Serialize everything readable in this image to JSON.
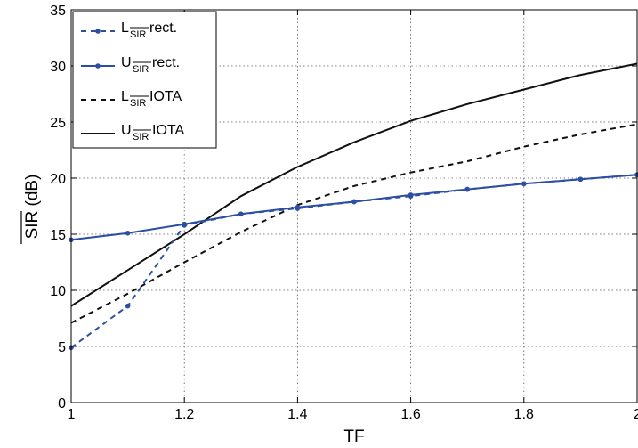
{
  "chart_data": {
    "type": "line",
    "xlabel": "TF",
    "ylabel": "SIR (dB)",
    "xlim": [
      1,
      2
    ],
    "ylim": [
      0,
      35
    ],
    "xticks": [
      1,
      1.2,
      1.4,
      1.6,
      1.8,
      2
    ],
    "xtick_labels": [
      "1",
      "1.2",
      "1.4",
      "1.6",
      "1.8",
      "2"
    ],
    "yticks": [
      0,
      5,
      10,
      15,
      20,
      25,
      30,
      35
    ],
    "ytick_labels": [
      "0",
      "5",
      "10",
      "15",
      "20",
      "25",
      "30",
      "35"
    ],
    "grid": true,
    "legend_position": "top-left",
    "series": [
      {
        "name": "L rect.",
        "legend_main": "L",
        "legend_sub": "SIR",
        "legend_tail": " rect.",
        "color": "#2c4ea3",
        "dash": "dashed",
        "marker": true,
        "x": [
          1,
          1.1,
          1.2,
          1.3,
          1.4,
          1.5,
          1.6,
          1.7,
          1.8,
          1.9,
          2
        ],
        "y": [
          4.9,
          8.6,
          15.8,
          16.8,
          17.3,
          17.9,
          18.4,
          19.0,
          19.5,
          19.9,
          20.3
        ]
      },
      {
        "name": "U rect.",
        "legend_main": "U",
        "legend_sub": "SIR",
        "legend_tail": " rect.",
        "color": "#2c4ea3",
        "dash": "solid",
        "marker": true,
        "x": [
          1,
          1.1,
          1.2,
          1.3,
          1.4,
          1.5,
          1.6,
          1.7,
          1.8,
          1.9,
          2
        ],
        "y": [
          14.5,
          15.1,
          15.9,
          16.8,
          17.4,
          17.9,
          18.5,
          19.0,
          19.5,
          19.9,
          20.3
        ]
      },
      {
        "name": "L IOTA",
        "legend_main": "L",
        "legend_sub": "SIR",
        "legend_tail": " IOTA",
        "color": "#111111",
        "dash": "dashed",
        "marker": false,
        "x": [
          1,
          1.1,
          1.2,
          1.3,
          1.4,
          1.5,
          1.6,
          1.7,
          1.8,
          1.9,
          2
        ],
        "y": [
          7.1,
          9.7,
          12.5,
          15.2,
          17.6,
          19.3,
          20.5,
          21.5,
          22.8,
          23.9,
          24.8
        ]
      },
      {
        "name": "U IOTA",
        "legend_main": "U",
        "legend_sub": "SIR",
        "legend_tail": " IOTA",
        "color": "#111111",
        "dash": "solid",
        "marker": false,
        "x": [
          1,
          1.1,
          1.2,
          1.3,
          1.4,
          1.5,
          1.6,
          1.7,
          1.8,
          1.9,
          2
        ],
        "y": [
          8.6,
          11.8,
          15.0,
          18.4,
          21.0,
          23.2,
          25.1,
          26.6,
          27.9,
          29.2,
          30.2
        ]
      }
    ]
  }
}
